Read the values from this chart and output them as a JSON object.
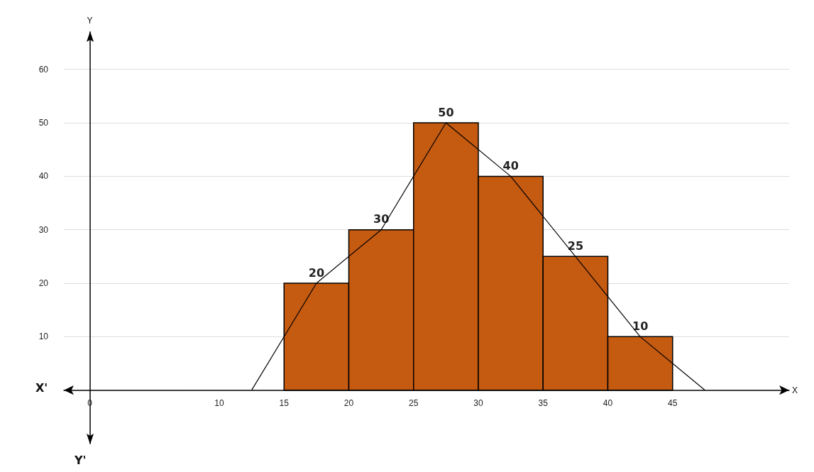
{
  "chart_data": {
    "type": "histogram",
    "xlabel": "X",
    "ylabel": "Y",
    "annotations": [
      "X'",
      "Y'"
    ],
    "bins": [
      15,
      20,
      25,
      30,
      35,
      40,
      45
    ],
    "values": [
      20,
      30,
      50,
      40,
      25,
      10
    ],
    "color": "#c55a11",
    "value_labels": [
      "20",
      "30",
      "50",
      "40",
      "25",
      "10"
    ],
    "series": [
      {
        "type": "line",
        "color": "#000000",
        "x": [
          12.5,
          17.5,
          22.5,
          27.5,
          32.5,
          37.5,
          42.5,
          47.5
        ],
        "values": [
          0,
          20,
          30,
          50,
          40,
          25,
          10,
          0
        ]
      }
    ],
    "marker": "none",
    "xlim": [
      -2,
      54
    ],
    "xticks": [
      0,
      10,
      15,
      20,
      25,
      30,
      35,
      40,
      45
    ],
    "ylim": [
      -10,
      67
    ],
    "yticks": [
      10,
      20,
      30,
      40,
      50,
      60
    ],
    "grid": "y"
  }
}
